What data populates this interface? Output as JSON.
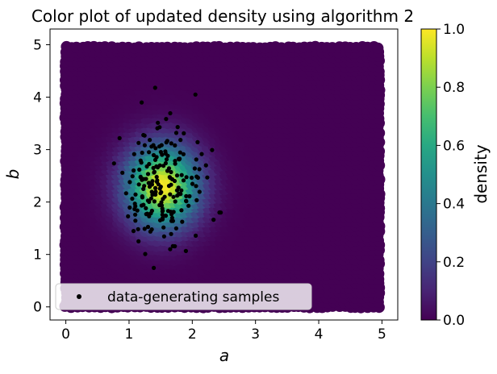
{
  "chart_data": {
    "type": "scatter",
    "title": "Color plot of updated density using algorithm 2",
    "xlabel": "a",
    "ylabel": "b",
    "xlim": [
      -0.25,
      5.25
    ],
    "ylim": [
      -0.25,
      5.3
    ],
    "xticks": [
      "0",
      "1",
      "2",
      "3",
      "4",
      "5"
    ],
    "yticks": [
      "0",
      "1",
      "2",
      "3",
      "4",
      "5"
    ],
    "grid": false,
    "density_field": {
      "colormap": "viridis",
      "domain_x": [
        0,
        5
      ],
      "domain_y": [
        0,
        5
      ],
      "peak_center": [
        1.55,
        2.35
      ],
      "peak_spread": [
        0.38,
        0.52
      ],
      "peak_value": 1.0
    },
    "colorbar": {
      "label": "density",
      "range": [
        0.0,
        1.0
      ],
      "ticks": [
        "0.0",
        "0.2",
        "0.4",
        "0.6",
        "0.8",
        "1.0"
      ]
    },
    "legend": {
      "position": "lower-left",
      "entries": [
        "data-generating samples"
      ]
    },
    "samples": {
      "name": "data-generating samples",
      "color": "#000000",
      "center": [
        1.55,
        2.35
      ],
      "spread": [
        0.3,
        0.55
      ],
      "count": 200,
      "extra_points": [
        [
          1.2,
          3.9
        ],
        [
          2.05,
          4.05
        ],
        [
          1.65,
          1.1
        ],
        [
          2.45,
          1.8
        ],
        [
          1.15,
          1.25
        ]
      ]
    }
  }
}
